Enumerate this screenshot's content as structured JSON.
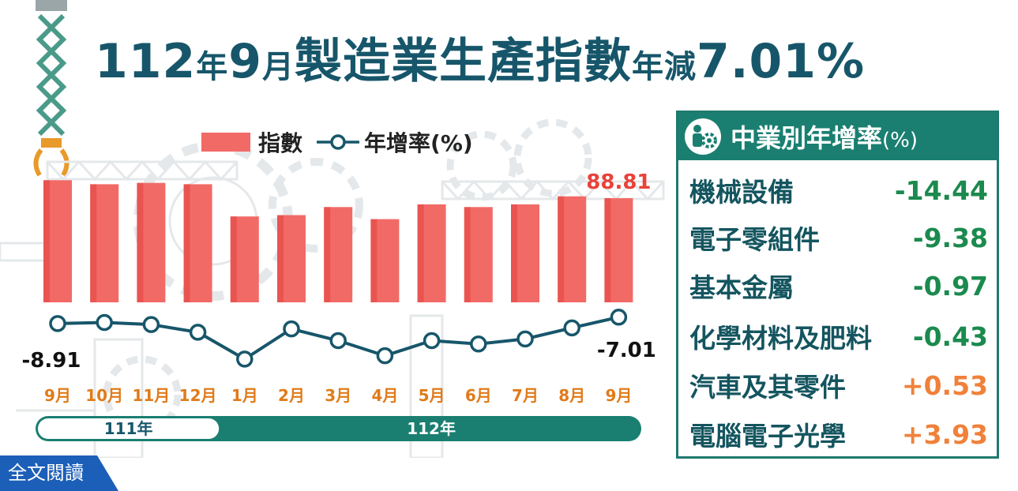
{
  "title": {
    "part1": "112",
    "part2": "年",
    "part3": "9",
    "part4": "月",
    "part5": "製造業生產指數",
    "part6": "年減",
    "part7": "7.01%"
  },
  "legend": {
    "index_label": "指數",
    "growth_label": "年增率(%)"
  },
  "chart_data": {
    "type": "bar",
    "categories": [
      "9月",
      "10月",
      "11月",
      "12月",
      "1月",
      "2月",
      "3月",
      "4月",
      "5月",
      "6月",
      "7月",
      "8月",
      "9月"
    ],
    "series": [
      {
        "name": "指數",
        "type": "bar",
        "values": [
          95.5,
          94.0,
          94.5,
          94.0,
          82.0,
          82.5,
          85.5,
          81.0,
          86.5,
          85.5,
          86.5,
          89.5,
          88.81
        ]
      },
      {
        "name": "年增率(%)",
        "type": "line",
        "values": [
          -8.91,
          -8.6,
          -9.2,
          -11.5,
          -19.5,
          -10.5,
          -14.0,
          -18.5,
          -14.0,
          -15.0,
          -13.5,
          -10.2,
          -7.01
        ]
      }
    ],
    "data_labels": [
      {
        "series": "指數",
        "index": 12,
        "text": "88.81"
      },
      {
        "series": "年增率(%)",
        "index": 0,
        "text": "-8.91"
      },
      {
        "series": "年增率(%)",
        "index": 12,
        "text": "-7.01"
      }
    ],
    "year_groups": [
      {
        "label": "111年",
        "start": 0,
        "end": 3
      },
      {
        "label": "112年",
        "start": 4,
        "end": 12
      }
    ],
    "bar_color": "#f26a66",
    "line_color": "#17566a",
    "label_color_bar": "#e8423a",
    "tick_label_color": "#e07b1a"
  },
  "industry_panel": {
    "title": "中業別年增率",
    "unit": "(%)",
    "rows": [
      {
        "name": "機械設備",
        "value": "-14.44",
        "color": "#1b8a4e"
      },
      {
        "name": "電子零組件",
        "value": "-9.38",
        "color": "#1b8a4e"
      },
      {
        "name": "基本金屬",
        "value": "-0.97",
        "color": "#1b8a4e"
      },
      {
        "name": "化學材料及肥料",
        "value": "-0.43",
        "color": "#1b8a4e"
      },
      {
        "name": "汽車及其零件",
        "value": "+0.53",
        "color": "#f0813a"
      },
      {
        "name": "電腦電子光學",
        "value": "+3.93",
        "color": "#f0813a"
      }
    ]
  },
  "read_more": "全文閱讀",
  "colors": {
    "primary": "#17566a",
    "panel": "#1a7f71"
  }
}
